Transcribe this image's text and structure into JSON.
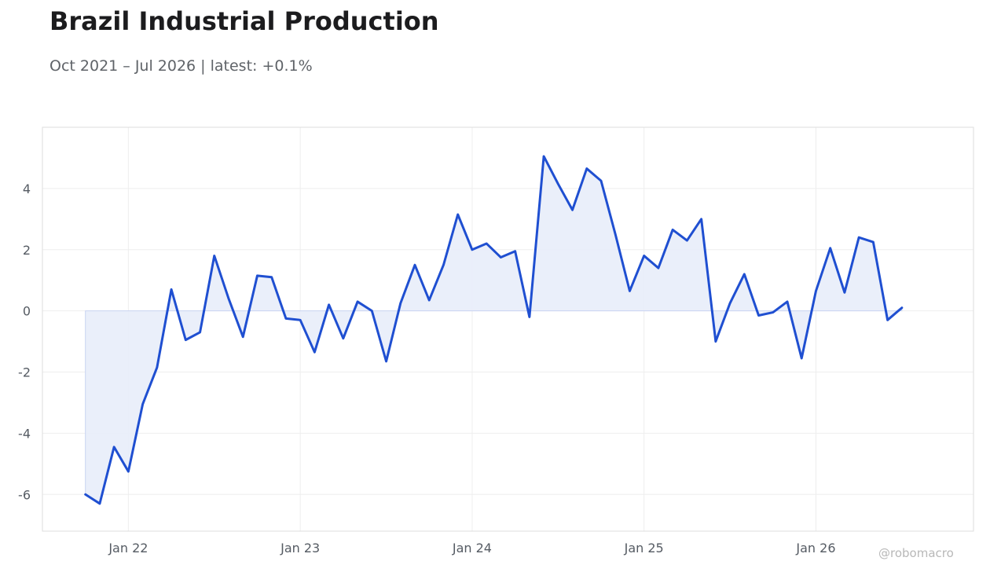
{
  "header": {
    "title": "Brazil Industrial Production",
    "subtitle": "Oct 2021 – Jul 2026 | latest: +0.1%"
  },
  "watermark": "@robomacro",
  "colors": {
    "line": "#1f4fd1",
    "fill": "#e8edf9",
    "grid": "#eeeeee",
    "frame": "#dddddd",
    "tick_text": "#555b63"
  },
  "chart_data": {
    "type": "area",
    "title": "Brazil Industrial Production",
    "subtitle": "Oct 2021 – Jul 2026 | latest: +0.1%",
    "xlabel": "",
    "ylabel": "",
    "x_start": "2021-10",
    "x_end": "2026-07",
    "xlim": [
      "2021-07",
      "2026-12"
    ],
    "ylim": [
      -7.2,
      6
    ],
    "grid": true,
    "legend": "none",
    "x_ticks": [
      {
        "label": "Jan 22",
        "date": "2022-01"
      },
      {
        "label": "Jan 23",
        "date": "2023-01"
      },
      {
        "label": "Jan 24",
        "date": "2024-01"
      },
      {
        "label": "Jan 25",
        "date": "2025-01"
      },
      {
        "label": "Jan 26",
        "date": "2026-01"
      }
    ],
    "y_ticks": [
      {
        "label": "4",
        "value": 4
      },
      {
        "label": "2",
        "value": 2
      },
      {
        "label": "0",
        "value": 0
      },
      {
        "label": "-2",
        "value": -2
      },
      {
        "label": "-4",
        "value": -4
      },
      {
        "label": "-6",
        "value": -6
      }
    ],
    "x": [
      "2021-10",
      "2021-11",
      "2021-12",
      "2022-01",
      "2022-02",
      "2022-03",
      "2022-04",
      "2022-05",
      "2022-06",
      "2022-07",
      "2022-08",
      "2022-09",
      "2022-10",
      "2022-11",
      "2022-12",
      "2023-01",
      "2023-02",
      "2023-03",
      "2023-04",
      "2023-05",
      "2023-06",
      "2023-07",
      "2023-08",
      "2023-09",
      "2023-10",
      "2023-11",
      "2023-12",
      "2024-01",
      "2024-02",
      "2024-03",
      "2024-04",
      "2024-05",
      "2024-06",
      "2024-07",
      "2024-08",
      "2024-09",
      "2024-10",
      "2024-11",
      "2024-12",
      "2025-01",
      "2025-02",
      "2025-03",
      "2025-04",
      "2025-05",
      "2025-06",
      "2025-07",
      "2025-08",
      "2025-09",
      "2025-10",
      "2025-11",
      "2025-12",
      "2026-01",
      "2026-02",
      "2026-03",
      "2026-04",
      "2026-05",
      "2026-06",
      "2026-07"
    ],
    "series": [
      {
        "values": [
          -6.0,
          -6.3,
          -4.45,
          -5.25,
          -3.05,
          -1.85,
          0.7,
          -0.95,
          -0.7,
          1.8,
          0.4,
          -0.85,
          1.15,
          1.1,
          -0.25,
          -0.3,
          -1.35,
          0.2,
          -0.9,
          0.3,
          0,
          -1.65,
          0.25,
          1.5,
          0.35,
          1.5,
          3.15,
          2.0,
          2.2,
          1.75,
          1.95,
          -0.2,
          5.05,
          4.15,
          3.3,
          4.65,
          4.25,
          2.5,
          0.65,
          1.8,
          1.4,
          2.65,
          2.3,
          3.0,
          -1.0,
          0.25,
          1.2,
          -0.15,
          -0.05,
          0.3,
          -1.55,
          0.65,
          2.05,
          0.6,
          2.4,
          2.25,
          -0.3,
          0.1
        ]
      }
    ]
  }
}
